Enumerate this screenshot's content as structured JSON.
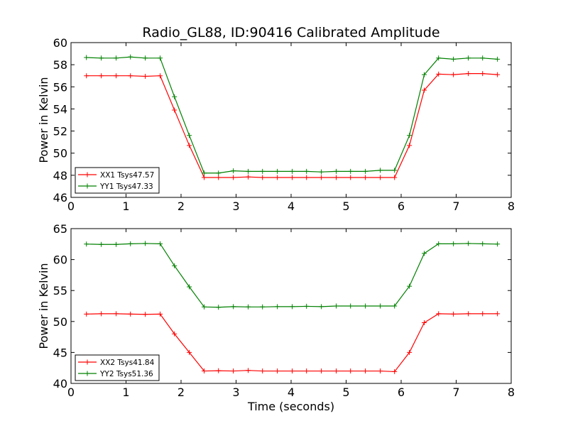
{
  "figure": {
    "title": "Radio_GL88, ID:90416 Calibrated Amplitude"
  },
  "colors": {
    "red": "#ff0000",
    "green": "#008000"
  },
  "chart_data": [
    {
      "type": "line",
      "title": "Radio_GL88, ID:90416 Calibrated Amplitude",
      "xlabel": "",
      "ylabel": "Power in Kelvin",
      "xlim": [
        0,
        8
      ],
      "ylim": [
        46,
        60
      ],
      "xticks": [
        0,
        1,
        2,
        3,
        4,
        5,
        6,
        7,
        8
      ],
      "yticks": [
        46,
        48,
        50,
        52,
        54,
        56,
        58,
        60
      ],
      "grid": false,
      "legend": "lower-left",
      "x": [
        0.28,
        0.55,
        0.82,
        1.08,
        1.35,
        1.62,
        1.88,
        2.15,
        2.42,
        2.68,
        2.95,
        3.22,
        3.48,
        3.75,
        4.02,
        4.28,
        4.55,
        4.82,
        5.08,
        5.35,
        5.62,
        5.88,
        6.15,
        6.42,
        6.68,
        6.95,
        7.22,
        7.48,
        7.75
      ],
      "series": [
        {
          "name": "XX1 Tsys47.57",
          "color": "#ff0000",
          "values": [
            57.0,
            57.0,
            57.0,
            57.0,
            56.95,
            57.0,
            53.9,
            50.7,
            47.8,
            47.8,
            47.8,
            47.85,
            47.8,
            47.8,
            47.8,
            47.8,
            47.8,
            47.8,
            47.8,
            47.8,
            47.8,
            47.8,
            50.7,
            55.7,
            57.15,
            57.1,
            57.2,
            57.2,
            57.1
          ]
        },
        {
          "name": "YY1 Tsys47.33",
          "color": "#008000",
          "values": [
            58.65,
            58.6,
            58.6,
            58.7,
            58.6,
            58.6,
            55.1,
            51.6,
            48.2,
            48.2,
            48.4,
            48.35,
            48.35,
            48.35,
            48.35,
            48.35,
            48.3,
            48.35,
            48.35,
            48.35,
            48.45,
            48.45,
            51.6,
            57.1,
            58.6,
            58.5,
            58.6,
            58.6,
            58.5
          ]
        }
      ]
    },
    {
      "type": "line",
      "title": "",
      "xlabel": "Time (seconds)",
      "ylabel": "Power in Kelvin",
      "xlim": [
        0,
        8
      ],
      "ylim": [
        40,
        65
      ],
      "xticks": [
        0,
        1,
        2,
        3,
        4,
        5,
        6,
        7,
        8
      ],
      "yticks": [
        40,
        45,
        50,
        55,
        60,
        65
      ],
      "grid": false,
      "legend": "lower-left",
      "x": [
        0.28,
        0.55,
        0.82,
        1.08,
        1.35,
        1.62,
        1.88,
        2.15,
        2.42,
        2.68,
        2.95,
        3.22,
        3.48,
        3.75,
        4.02,
        4.28,
        4.55,
        4.82,
        5.08,
        5.35,
        5.62,
        5.88,
        6.15,
        6.42,
        6.68,
        6.95,
        7.22,
        7.48,
        7.75
      ],
      "series": [
        {
          "name": "XX2 Tsys41.84",
          "color": "#ff0000",
          "values": [
            51.2,
            51.25,
            51.25,
            51.2,
            51.15,
            51.2,
            48.0,
            45.0,
            42.0,
            42.05,
            42.0,
            42.1,
            42.0,
            42.0,
            42.0,
            42.0,
            42.0,
            42.0,
            42.0,
            42.0,
            42.0,
            41.9,
            45.0,
            49.8,
            51.25,
            51.2,
            51.25,
            51.25,
            51.25
          ]
        },
        {
          "name": "YY2 Tsys51.36",
          "color": "#008000",
          "values": [
            62.5,
            62.45,
            62.45,
            62.55,
            62.6,
            62.55,
            59.0,
            55.6,
            52.35,
            52.3,
            52.4,
            52.35,
            52.35,
            52.4,
            52.4,
            52.45,
            52.4,
            52.5,
            52.5,
            52.5,
            52.5,
            52.5,
            55.7,
            61.0,
            62.55,
            62.55,
            62.6,
            62.55,
            62.5
          ]
        }
      ]
    }
  ]
}
